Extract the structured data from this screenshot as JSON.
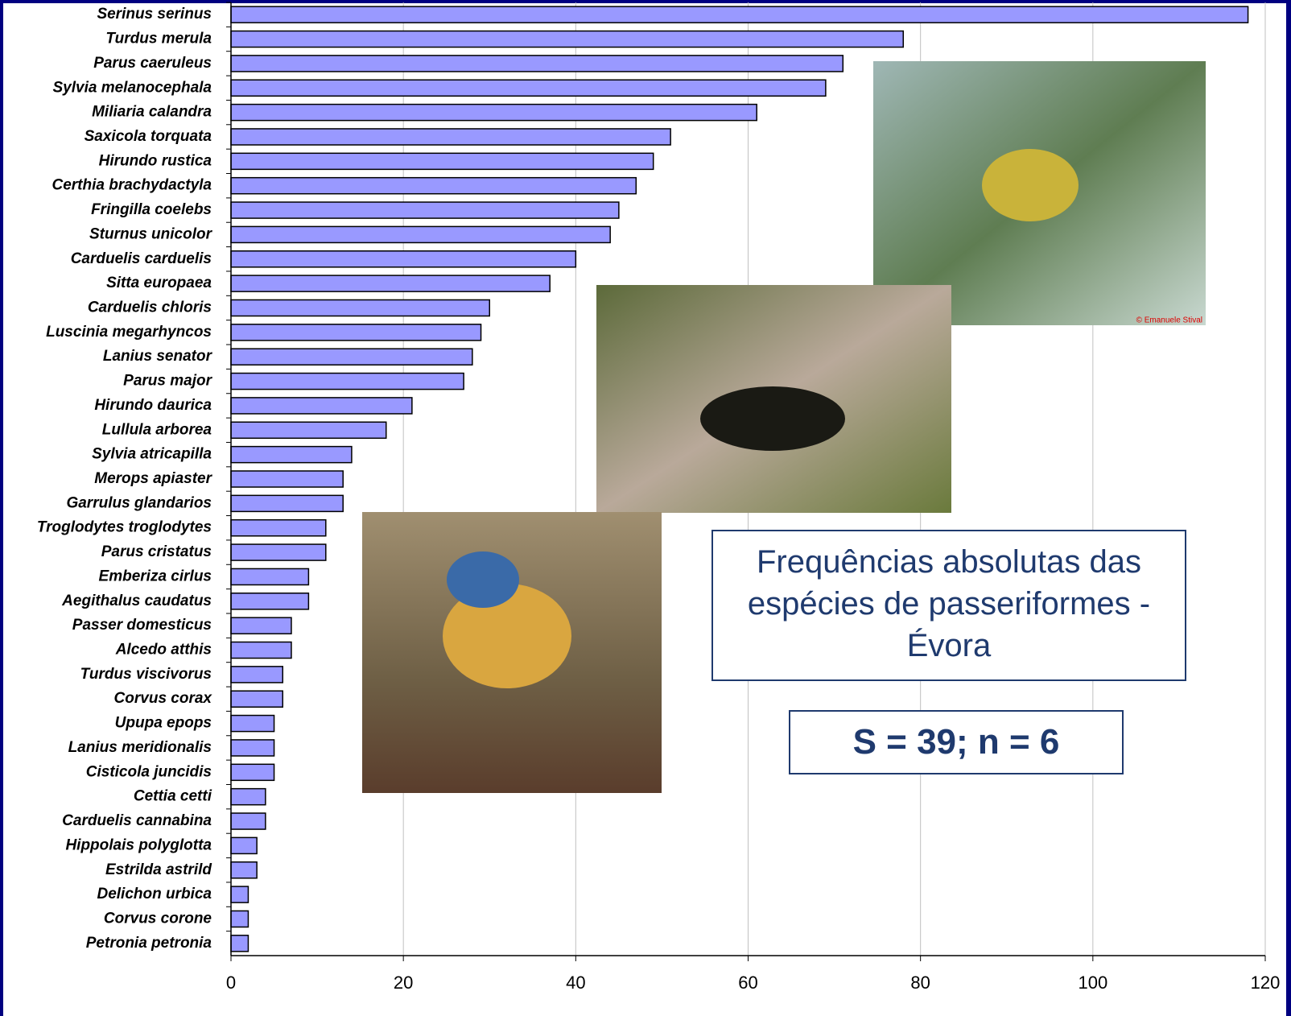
{
  "chart_data": {
    "type": "hbar",
    "title": "Frequências absolutas das espécies de passeriformes - Évora",
    "annotation": "S = 39; n = 6",
    "photo_credit": "© Emanuele Stival",
    "categories": [
      "Serinus serinus",
      "Turdus merula",
      "Parus caeruleus",
      "Sylvia melanocephala",
      "Miliaria calandra",
      "Saxicola torquata",
      "Hirundo rustica",
      "Certhia brachydactyla",
      "Fringilla coelebs",
      "Sturnus unicolor",
      "Carduelis carduelis",
      "Sitta europaea",
      "Carduelis chloris",
      "Luscinia megarhyncos",
      "Lanius senator",
      "Parus major",
      "Hirundo daurica",
      "Lullula arborea",
      "Sylvia atricapilla",
      "Merops apiaster",
      "Garrulus glandarios",
      "Troglodytes troglodytes",
      "Parus cristatus",
      "Emberiza cirlus",
      "Aegithalus caudatus",
      "Passer domesticus",
      "Alcedo atthis",
      "Turdus viscivorus",
      "Corvus corax",
      "Upupa epops",
      "Lanius meridionalis",
      "Cisticola juncidis",
      "Cettia cetti",
      "Carduelis cannabina",
      "Hippolais polyglotta",
      "Estrilda astrild",
      "Delichon urbica",
      "Corvus corone",
      "Petronia petronia"
    ],
    "values": [
      118,
      78,
      71,
      69,
      61,
      51,
      49,
      47,
      45,
      44,
      40,
      37,
      30,
      29,
      28,
      27,
      21,
      18,
      14,
      13,
      13,
      11,
      11,
      9,
      9,
      7,
      7,
      6,
      6,
      5,
      5,
      5,
      4,
      4,
      3,
      3,
      2,
      2,
      2
    ],
    "color": "#9999ff",
    "xlim": [
      0,
      120
    ],
    "xticks": [
      0,
      20,
      40,
      60,
      80,
      100,
      120
    ],
    "grid": true
  }
}
